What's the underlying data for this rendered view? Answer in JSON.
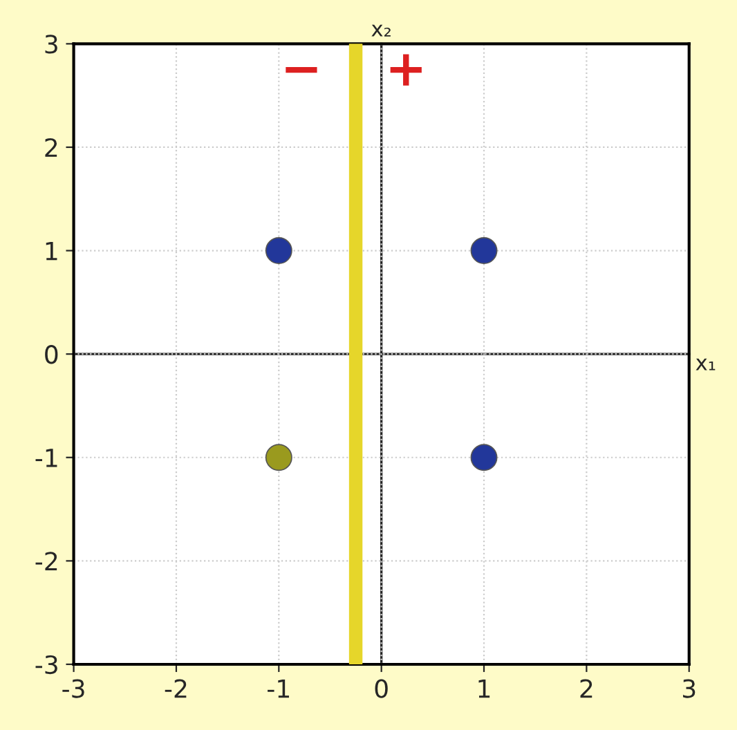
{
  "chart_data": {
    "type": "scatter",
    "xlabel": "x₁",
    "ylabel": "x₂",
    "xlim": [
      -3,
      3
    ],
    "ylim": [
      -3,
      3
    ],
    "xticks": [
      -3,
      -2,
      -1,
      0,
      1,
      2,
      3
    ],
    "yticks": [
      -3,
      -2,
      -1,
      0,
      1,
      2,
      3
    ],
    "grid": true,
    "marker": "circle",
    "series": [
      {
        "color": "#22379a",
        "x": [
          -1,
          1,
          1
        ],
        "values": [
          1,
          1,
          -1
        ]
      },
      {
        "color": "#9a9a1e",
        "x": [
          -1
        ],
        "values": [
          -1
        ]
      },
      {
        "type": "line",
        "color": "#e6d62a",
        "x": [
          -0.25,
          -0.25
        ],
        "values": [
          -3,
          3
        ],
        "marker": "none"
      }
    ],
    "annotations": [
      "−",
      "+"
    ]
  }
}
